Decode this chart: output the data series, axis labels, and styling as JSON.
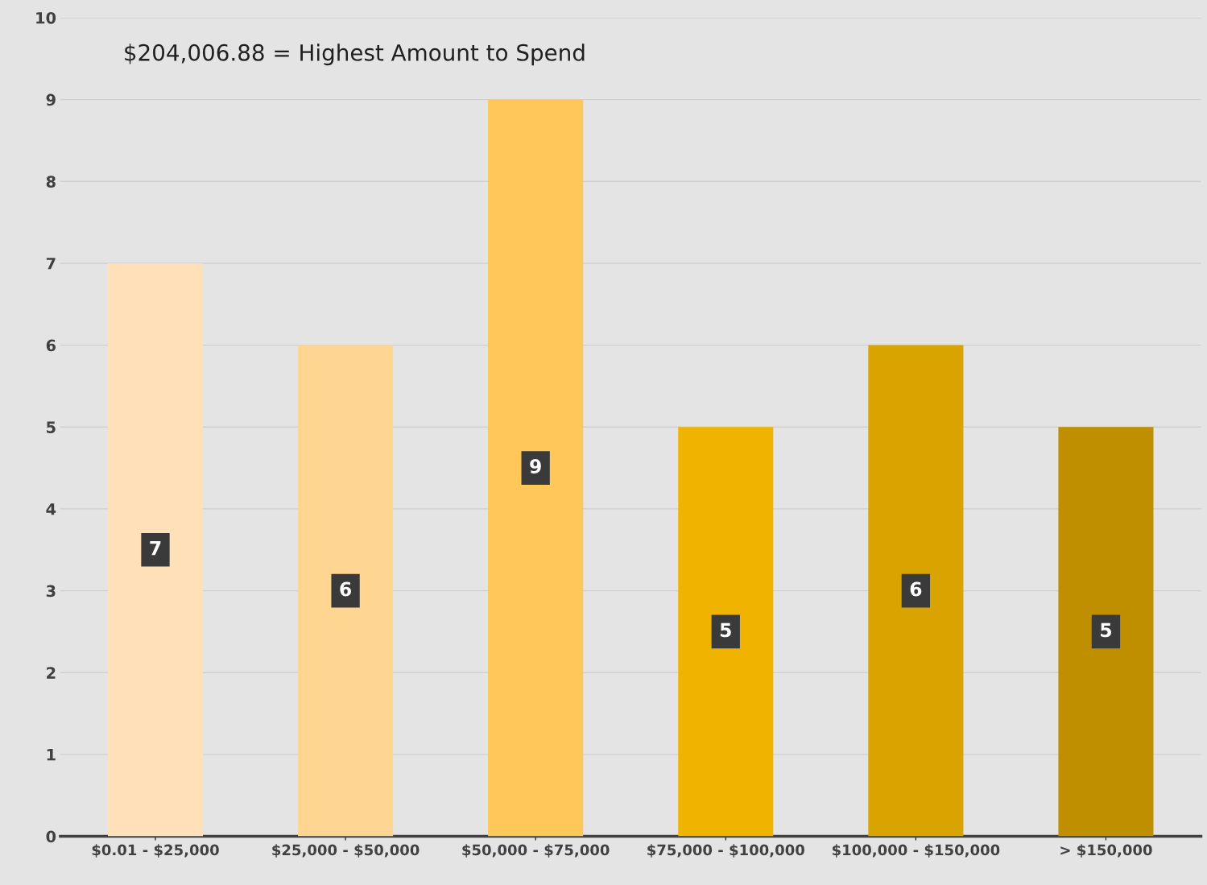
{
  "chart_data": {
    "type": "bar",
    "categories": [
      "$0.01 - $25,000",
      "$25,000 - $50,000",
      "$50,000 - $75,000",
      "$75,000 - $100,000",
      "$100,000 - $150,000",
      "> $150,000"
    ],
    "values": [
      7,
      6,
      9,
      5,
      6,
      5
    ],
    "colors": [
      "#ffe0b8",
      "#ffd592",
      "#ffc65a",
      "#f0b400",
      "#d9a300",
      "#bf8f00"
    ],
    "ylim": [
      0,
      10
    ],
    "yticks": [
      0,
      1,
      2,
      3,
      4,
      5,
      6,
      7,
      8,
      9,
      10
    ],
    "grid": "y",
    "data_labels": true,
    "annotations": [
      "$204,006.88 = Highest Amount to Spend"
    ]
  }
}
